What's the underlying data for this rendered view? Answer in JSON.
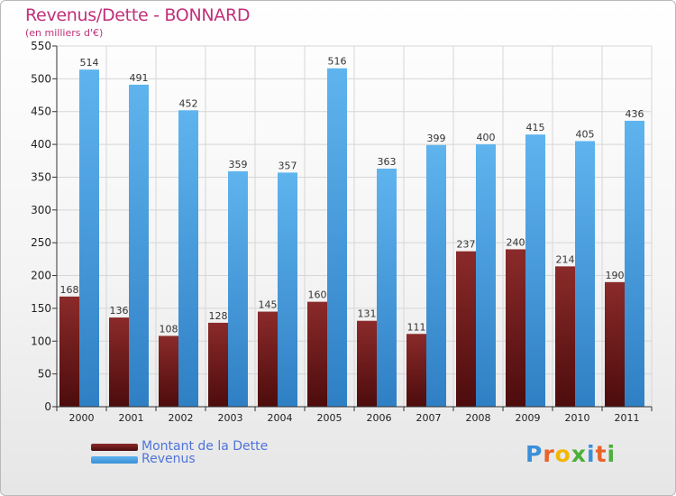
{
  "title": "Revenus/Dette - BONNARD",
  "subtitle": "(en milliers d'€)",
  "legend": {
    "debt_label": "Montant de la Dette",
    "revenue_label": "Revenus"
  },
  "logo": {
    "text": "Proxiti",
    "letters": [
      {
        "ch": "P",
        "color": "#3a8fd8"
      },
      {
        "ch": "r",
        "color": "#e8632a"
      },
      {
        "ch": "o",
        "color": "#f2b705"
      },
      {
        "ch": "x",
        "color": "#4caf3a"
      },
      {
        "ch": "i",
        "color": "#3a8fd8"
      },
      {
        "ch": "t",
        "color": "#e8632a"
      },
      {
        "ch": "i",
        "color": "#4caf3a"
      }
    ]
  },
  "colors": {
    "debt": "#7d1e1e",
    "revenue": "#4aa3e6",
    "title": "#c0307a",
    "legend_text": "#4f74d9"
  },
  "chart_data": {
    "type": "bar",
    "categories": [
      "2000",
      "2001",
      "2002",
      "2003",
      "2004",
      "2005",
      "2006",
      "2007",
      "2008",
      "2009",
      "2010",
      "2011"
    ],
    "series": [
      {
        "name": "Montant de la Dette",
        "values": [
          168,
          136,
          108,
          128,
          145,
          160,
          131,
          111,
          237,
          240,
          214,
          190
        ]
      },
      {
        "name": "Revenus",
        "values": [
          514,
          491,
          452,
          359,
          357,
          516,
          363,
          399,
          400,
          415,
          405,
          436
        ]
      }
    ],
    "ylim": [
      0,
      550
    ],
    "yticks": [
      0,
      50,
      100,
      150,
      200,
      250,
      300,
      350,
      400,
      450,
      500,
      550
    ],
    "grid": true,
    "legend_position": "bottom-left",
    "data_labels": true
  }
}
